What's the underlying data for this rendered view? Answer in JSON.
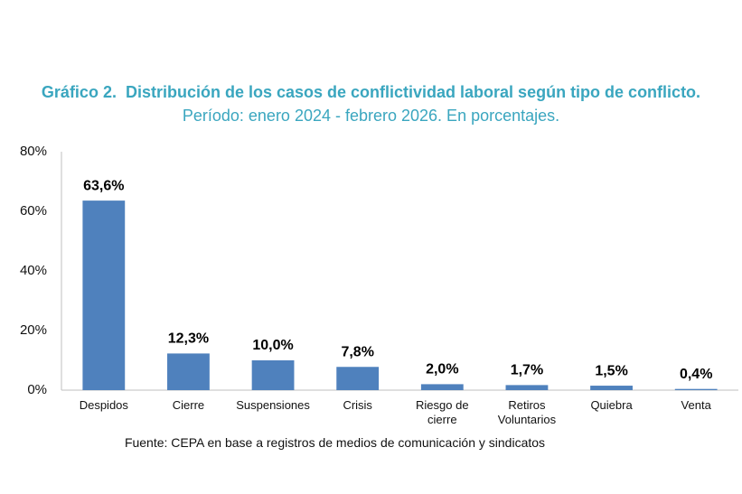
{
  "chart_data": {
    "type": "bar",
    "title": "Gráfico 2.  Distribución de los casos de conflictividad laboral según tipo de conflicto.",
    "subtitle": "Período: enero 2024 - febrero 2026. En porcentajes.",
    "source": "Fuente: CEPA en base a registros de medios de comunicación y sindicatos",
    "categories": [
      "Despidos",
      "Cierre",
      "Suspensiones",
      "Crisis",
      "Riesgo de cierre",
      "Retiros Voluntarios",
      "Quiebra",
      "Venta"
    ],
    "values": [
      63.6,
      12.3,
      10.0,
      7.8,
      2.0,
      1.7,
      1.5,
      0.4
    ],
    "value_labels": [
      "63,6%",
      "12,3%",
      "10,0%",
      "7,8%",
      "2,0%",
      "1,7%",
      "1,5%",
      "0,4%"
    ],
    "color": "#4f81bd",
    "ylim": [
      0,
      80
    ],
    "yticks": [
      {
        "value": 0,
        "label": "0%"
      },
      {
        "value": 20,
        "label": "20%"
      },
      {
        "value": 40,
        "label": "40%"
      },
      {
        "value": 60,
        "label": "60%"
      },
      {
        "value": 80,
        "label": "80%"
      }
    ],
    "grid": false
  }
}
